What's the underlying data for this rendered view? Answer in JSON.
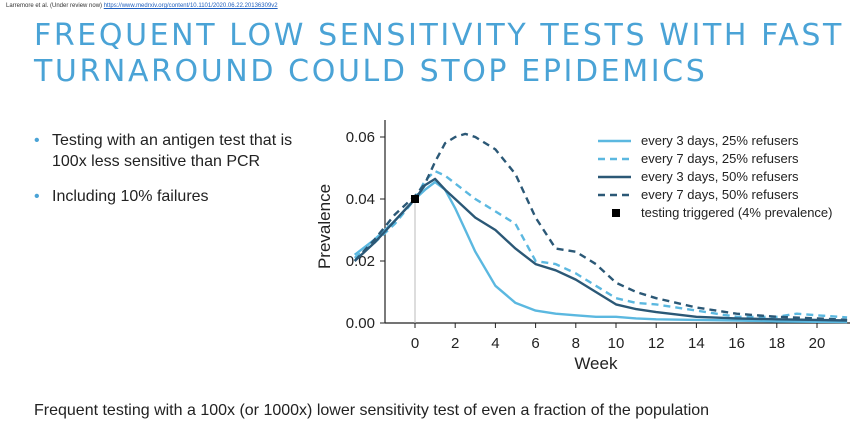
{
  "header": {
    "citation_author": "Larremore et al. (Under review now)",
    "citation_url": "https://www.medrxiv.org/content/10.1101/2020.06.22.20136309v2",
    "title_line1": "FREQUENT LOW SENSITIVITY TESTS WITH FAST",
    "title_line2": "TURNAROUND COULD STOP EPIDEMICS"
  },
  "bullets": [
    "Testing with an antigen test that is 100x less sensitive than PCR",
    "Including 10% failures"
  ],
  "footer": {
    "text": "Frequent testing with a 100x (or 1000x) lower sensitivity test of even a fraction of the population"
  },
  "colors": {
    "title": "#4aa3d6",
    "light_blue": "#5bb8e0",
    "dark_blue": "#2b5876"
  },
  "chart_data": {
    "type": "line",
    "title": "",
    "xlabel": "Week",
    "ylabel": "Prevalence",
    "xlim": [
      -3,
      21.5
    ],
    "ylim": [
      0,
      0.06
    ],
    "xticks": [
      "0",
      "2",
      "4",
      "6",
      "8",
      "10",
      "12",
      "14",
      "16",
      "18",
      "20"
    ],
    "yticks": [
      "0.00",
      "0.02",
      "0.04",
      "0.06"
    ],
    "legend_position": "top-right",
    "vline_at": 0,
    "series": [
      {
        "name": "every 3 days, 25% refusers",
        "color": "#5bb8e0",
        "dash": "solid",
        "x": [
          -3,
          -2,
          -1,
          0,
          0.5,
          1,
          1.5,
          2,
          2.5,
          3,
          4,
          5,
          6,
          7,
          8,
          9,
          10,
          11,
          12,
          14,
          16,
          18,
          20,
          21.5
        ],
        "y": [
          0.022,
          0.027,
          0.033,
          0.04,
          0.043,
          0.0455,
          0.043,
          0.037,
          0.03,
          0.023,
          0.012,
          0.0065,
          0.004,
          0.003,
          0.0025,
          0.002,
          0.002,
          0.0015,
          0.0012,
          0.001,
          0.0008,
          0.0005,
          0.0004,
          0.0003
        ]
      },
      {
        "name": "every 7 days, 25% refusers",
        "color": "#5bb8e0",
        "dash": "dashed",
        "x": [
          -3,
          -2,
          -1,
          0,
          0.5,
          1,
          1.5,
          2,
          3,
          4,
          5,
          6,
          7,
          8,
          9,
          10,
          11,
          12,
          14,
          16,
          18,
          19,
          20,
          21.5
        ],
        "y": [
          0.021,
          0.026,
          0.032,
          0.04,
          0.046,
          0.049,
          0.0475,
          0.045,
          0.04,
          0.036,
          0.032,
          0.02,
          0.019,
          0.016,
          0.012,
          0.008,
          0.0065,
          0.006,
          0.004,
          0.002,
          0.002,
          0.003,
          0.0025,
          0.0018
        ]
      },
      {
        "name": "every 3 days, 50% refusers",
        "color": "#2b5876",
        "dash": "solid",
        "x": [
          -3,
          -2,
          -1,
          0,
          0.5,
          1,
          1.5,
          2,
          3,
          4,
          5,
          6,
          7,
          8,
          9,
          10,
          11,
          12,
          14,
          16,
          18,
          20,
          21.5
        ],
        "y": [
          0.02,
          0.026,
          0.033,
          0.04,
          0.0445,
          0.0465,
          0.043,
          0.04,
          0.034,
          0.03,
          0.024,
          0.019,
          0.017,
          0.014,
          0.01,
          0.006,
          0.0045,
          0.0035,
          0.002,
          0.0015,
          0.0012,
          0.001,
          0.0008
        ]
      },
      {
        "name": "every 7 days, 50% refusers",
        "color": "#2b5876",
        "dash": "dashed",
        "x": [
          -3,
          -2,
          -1,
          0,
          0.5,
          1,
          1.5,
          2,
          2.5,
          3,
          4,
          5,
          6,
          7,
          8,
          9,
          10,
          11,
          12,
          14,
          16,
          18,
          20,
          21.5
        ],
        "y": [
          0.02,
          0.027,
          0.035,
          0.041,
          0.045,
          0.052,
          0.058,
          0.06,
          0.061,
          0.06,
          0.056,
          0.048,
          0.034,
          0.024,
          0.023,
          0.019,
          0.013,
          0.01,
          0.008,
          0.005,
          0.003,
          0.002,
          0.0015,
          0.001
        ]
      },
      {
        "name": "testing triggered (4% prevalence)",
        "color": "#000000",
        "marker": "square",
        "x": [
          0
        ],
        "y": [
          0.04
        ]
      }
    ]
  }
}
